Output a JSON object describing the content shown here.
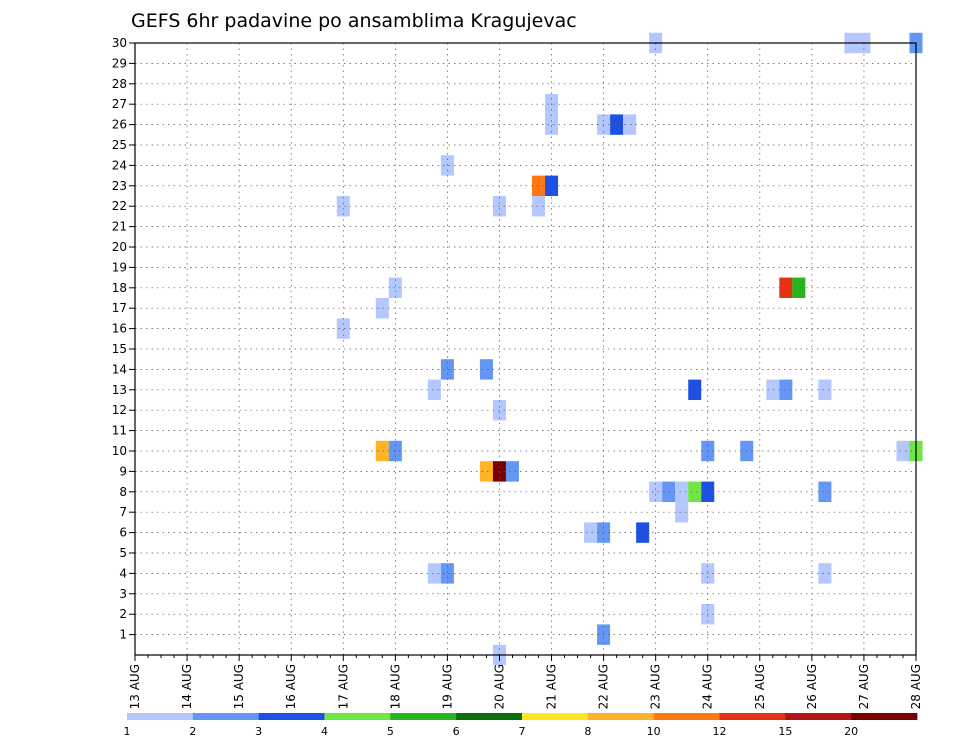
{
  "chart_data": {
    "type": "heatmap",
    "title": "GEFS 6hr padavine po ansamblima Kragujevac",
    "xlabel": "",
    "ylabel": "",
    "x_ticks": [
      "13 AUG",
      "14 AUG",
      "15 AUG",
      "16 AUG",
      "17 AUG",
      "18 AUG",
      "19 AUG",
      "20 AUG",
      "21 AUG",
      "22 AUG",
      "23 AUG",
      "24 AUG",
      "25 AUG",
      "26 AUG",
      "27 AUG",
      "28 AUG"
    ],
    "x_range": [
      0,
      60
    ],
    "y_ticks": [
      1,
      2,
      3,
      4,
      5,
      6,
      7,
      8,
      9,
      10,
      11,
      12,
      13,
      14,
      15,
      16,
      17,
      18,
      19,
      20,
      21,
      22,
      23,
      24,
      25,
      26,
      27,
      28,
      29,
      30
    ],
    "y_range": [
      0,
      30
    ],
    "grid": true,
    "colorbar": {
      "labels": [
        "1",
        "2",
        "3",
        "4",
        "5",
        "6",
        "7",
        "8",
        "10",
        "12",
        "15",
        "20"
      ],
      "colors": [
        "#b4c8ff",
        "#6496f5",
        "#1e50e6",
        "#6ee646",
        "#28b41e",
        "#0a6e0a",
        "#ffe61e",
        "#ffb428",
        "#ff7814",
        "#e63214",
        "#b41414",
        "#780000"
      ]
    },
    "cells": [
      {
        "member": 30,
        "step": 40,
        "level": 1
      },
      {
        "member": 30,
        "step": 55,
        "level": 1
      },
      {
        "member": 30,
        "step": 56,
        "level": 1
      },
      {
        "member": 30,
        "step": 60,
        "level": 2
      },
      {
        "member": 27,
        "step": 32,
        "level": 1
      },
      {
        "member": 26,
        "step": 32,
        "level": 1
      },
      {
        "member": 26,
        "step": 36,
        "level": 1
      },
      {
        "member": 26,
        "step": 37,
        "level": 3
      },
      {
        "member": 26,
        "step": 38,
        "level": 1
      },
      {
        "member": 24,
        "step": 24,
        "level": 1
      },
      {
        "member": 23,
        "step": 31,
        "level": 9
      },
      {
        "member": 23,
        "step": 32,
        "level": 3
      },
      {
        "member": 22,
        "step": 16,
        "level": 1
      },
      {
        "member": 22,
        "step": 28,
        "level": 1
      },
      {
        "member": 22,
        "step": 31,
        "level": 1
      },
      {
        "member": 18,
        "step": 20,
        "level": 1
      },
      {
        "member": 18,
        "step": 50,
        "level": 10
      },
      {
        "member": 18,
        "step": 51,
        "level": 5
      },
      {
        "member": 17,
        "step": 19,
        "level": 1
      },
      {
        "member": 16,
        "step": 16,
        "level": 1
      },
      {
        "member": 14,
        "step": 24,
        "level": 2
      },
      {
        "member": 14,
        "step": 27,
        "level": 2
      },
      {
        "member": 13,
        "step": 23,
        "level": 1
      },
      {
        "member": 13,
        "step": 43,
        "level": 3
      },
      {
        "member": 13,
        "step": 49,
        "level": 1
      },
      {
        "member": 13,
        "step": 50,
        "level": 2
      },
      {
        "member": 13,
        "step": 53,
        "level": 1
      },
      {
        "member": 12,
        "step": 28,
        "level": 1
      },
      {
        "member": 10,
        "step": 19,
        "level": 8
      },
      {
        "member": 10,
        "step": 20,
        "level": 2
      },
      {
        "member": 10,
        "step": 44,
        "level": 2
      },
      {
        "member": 10,
        "step": 47,
        "level": 2
      },
      {
        "member": 10,
        "step": 59,
        "level": 1
      },
      {
        "member": 10,
        "step": 60,
        "level": 4
      },
      {
        "member": 9,
        "step": 27,
        "level": 8
      },
      {
        "member": 9,
        "step": 28,
        "level": 12
      },
      {
        "member": 9,
        "step": 29,
        "level": 2
      },
      {
        "member": 8,
        "step": 40,
        "level": 1
      },
      {
        "member": 8,
        "step": 41,
        "level": 2
      },
      {
        "member": 8,
        "step": 42,
        "level": 1
      },
      {
        "member": 8,
        "step": 43,
        "level": 4
      },
      {
        "member": 8,
        "step": 44,
        "level": 3
      },
      {
        "member": 8,
        "step": 53,
        "level": 2
      },
      {
        "member": 7,
        "step": 42,
        "level": 1
      },
      {
        "member": 6,
        "step": 35,
        "level": 1
      },
      {
        "member": 6,
        "step": 36,
        "level": 2
      },
      {
        "member": 6,
        "step": 39,
        "level": 3
      },
      {
        "member": 4,
        "step": 23,
        "level": 1
      },
      {
        "member": 4,
        "step": 24,
        "level": 2
      },
      {
        "member": 4,
        "step": 44,
        "level": 1
      },
      {
        "member": 4,
        "step": 53,
        "level": 1
      },
      {
        "member": 2,
        "step": 44,
        "level": 1
      },
      {
        "member": 1,
        "step": 36,
        "level": 2
      },
      {
        "member": 0,
        "step": 28,
        "level": 1
      }
    ]
  }
}
